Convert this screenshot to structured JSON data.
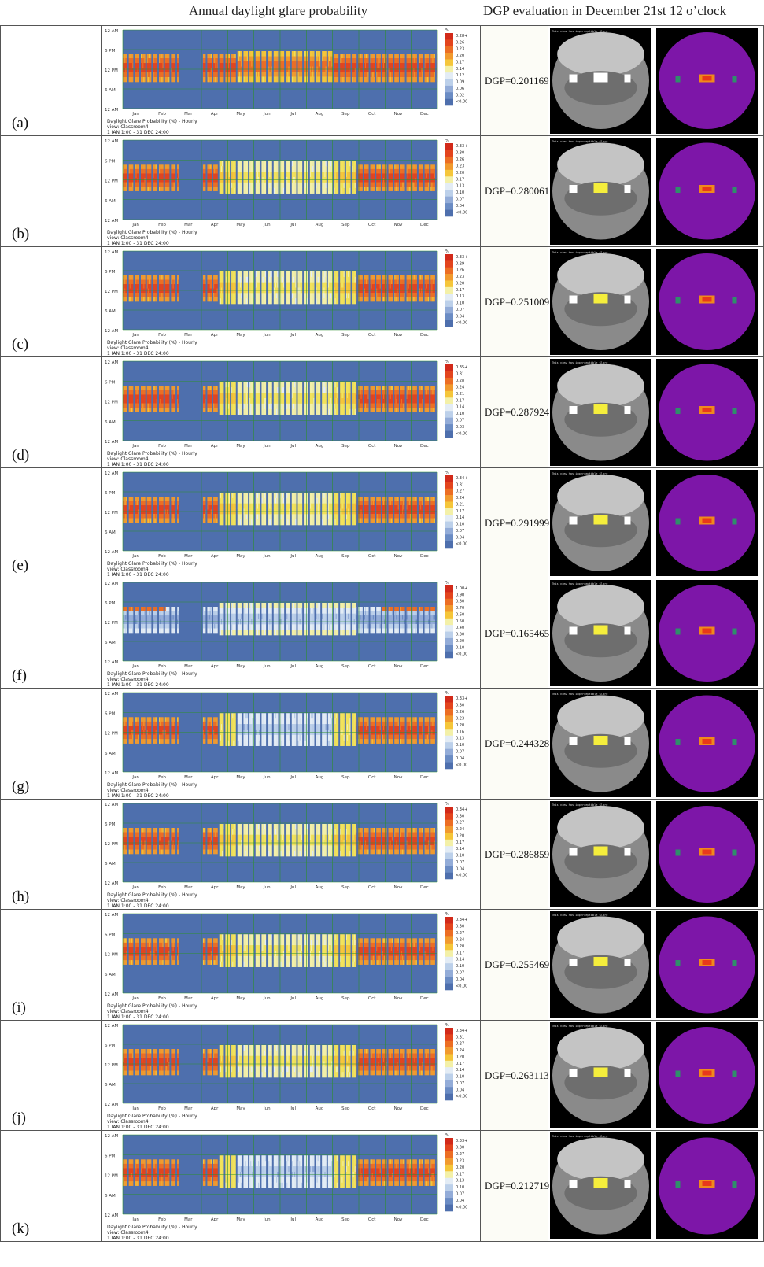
{
  "headers": {
    "left": "Annual daylight glare probability",
    "right": "DGP evaluation in December 21st 12 o’clock"
  },
  "chart_common": {
    "y_ticks": [
      "12 AM",
      "6 PM",
      "12 PM",
      "6 AM",
      "12 AM"
    ],
    "months": [
      "Jan",
      "Feb",
      "Mar",
      "Apr",
      "May",
      "Jun",
      "Jul",
      "Aug",
      "Sep",
      "Oct",
      "Nov",
      "Dec"
    ],
    "title": "Daylight Glare Probability (%) - Hourly",
    "view": "view: Classroom4",
    "period": "1 JAN 1:00 - 31 DEC 24:00",
    "unit": "%",
    "fisheye_caption": "This view has imperceptible Glare"
  },
  "palette": {
    "background": "#4e6fad",
    "scale": [
      "#4e6fad",
      "#6b8cc4",
      "#93acd8",
      "#bcd0ea",
      "#e3ecf5",
      "#f3f0a8",
      "#f3e35a",
      "#f5c63a",
      "#f19a2e",
      "#ec6e24",
      "#e3451e",
      "#d22a1a"
    ],
    "grid": "#2f8f2f",
    "false_color": "#7d16a8"
  },
  "chart_data": [
    {
      "label": "(a)",
      "dgp": "DGP=0.201169",
      "type": "heatmap",
      "legend": [
        "0.28+",
        "0.26",
        "0.23",
        "0.20",
        "0.17",
        "0.14",
        "0.12",
        "0.09",
        "0.06",
        "0.02",
        "<0.00"
      ],
      "pattern": "a"
    },
    {
      "label": "(b)",
      "dgp": "DGP=0.280061",
      "type": "heatmap",
      "legend": [
        "0.33+",
        "0.30",
        "0.26",
        "0.23",
        "0.20",
        "0.17",
        "0.13",
        "0.10",
        "0.07",
        "0.04",
        "<0.00"
      ],
      "pattern": "summerYellow"
    },
    {
      "label": "(c)",
      "dgp": "DGP=0.251009",
      "type": "heatmap",
      "legend": [
        "0.33+",
        "0.29",
        "0.26",
        "0.23",
        "0.20",
        "0.17",
        "0.13",
        "0.10",
        "0.07",
        "0.04",
        "<0.00"
      ],
      "pattern": "summerYellow"
    },
    {
      "label": "(d)",
      "dgp": "DGP=0.287924",
      "type": "heatmap",
      "legend": [
        "0.35+",
        "0.31",
        "0.28",
        "0.24",
        "0.21",
        "0.17",
        "0.14",
        "0.10",
        "0.07",
        "0.03",
        "<0.00"
      ],
      "pattern": "summerYellow"
    },
    {
      "label": "(e)",
      "dgp": "DGP=0.291999",
      "type": "heatmap",
      "legend": [
        "0.34+",
        "0.31",
        "0.27",
        "0.24",
        "0.21",
        "0.17",
        "0.14",
        "0.10",
        "0.07",
        "0.04",
        "<0.00"
      ],
      "pattern": "summerYellow"
    },
    {
      "label": "(f)",
      "dgp": "DGP=0.165465",
      "type": "heatmap",
      "legend": [
        "1.00+",
        "0.90",
        "0.80",
        "0.70",
        "0.60",
        "0.50",
        "0.40",
        "0.30",
        "0.20",
        "0.10",
        "<0.00"
      ],
      "pattern": "lowBlue"
    },
    {
      "label": "(g)",
      "dgp": "DGP=0.244328",
      "type": "heatmap",
      "legend": [
        "0.33+",
        "0.30",
        "0.26",
        "0.23",
        "0.20",
        "0.16",
        "0.13",
        "0.10",
        "0.07",
        "0.04",
        "<0.00"
      ],
      "pattern": "summerPale"
    },
    {
      "label": "(h)",
      "dgp": "DGP=0.286859",
      "type": "heatmap",
      "legend": [
        "0.34+",
        "0.30",
        "0.27",
        "0.24",
        "0.20",
        "0.17",
        "0.14",
        "0.10",
        "0.07",
        "0.04",
        "<0.00"
      ],
      "pattern": "summerYellow"
    },
    {
      "label": "(i)",
      "dgp": "DGP=0.255469",
      "type": "heatmap",
      "legend": [
        "0.34+",
        "0.30",
        "0.27",
        "0.24",
        "0.20",
        "0.17",
        "0.14",
        "0.10",
        "0.07",
        "0.04",
        "<0.00"
      ],
      "pattern": "summerYellow"
    },
    {
      "label": "(j)",
      "dgp": "DGP=0.263113",
      "type": "heatmap",
      "legend": [
        "0.34+",
        "0.31",
        "0.27",
        "0.24",
        "0.20",
        "0.17",
        "0.14",
        "0.10",
        "0.07",
        "0.04",
        "<0.00"
      ],
      "pattern": "summerYellow"
    },
    {
      "label": "(k)",
      "dgp": "DGP=0.212719",
      "type": "heatmap",
      "legend": [
        "0.33+",
        "0.30",
        "0.27",
        "0.23",
        "0.20",
        "0.17",
        "0.13",
        "0.10",
        "0.07",
        "0.04",
        "<0.00"
      ],
      "pattern": "summerPale"
    }
  ]
}
